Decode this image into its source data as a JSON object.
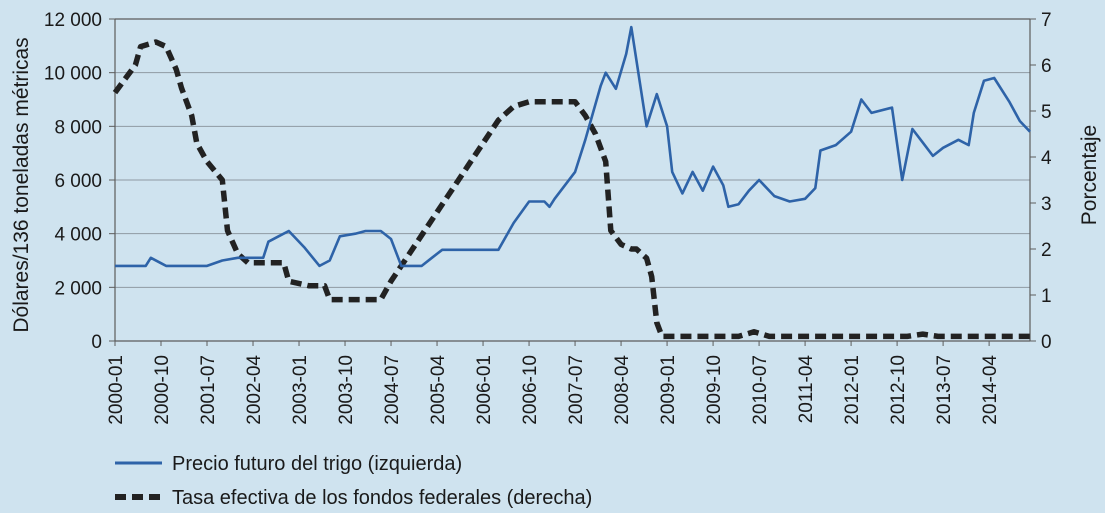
{
  "chart_data": {
    "type": "line",
    "xlabel": "",
    "y_left": {
      "label": "Dólares/136 toneladas métricas",
      "ylim": [
        0,
        12000
      ],
      "ticks": [
        0,
        2000,
        4000,
        6000,
        8000,
        10000,
        12000
      ],
      "tick_labels": [
        "0",
        "2 000",
        "4 000",
        "6 000",
        "8 000",
        "10 000",
        "12 000"
      ]
    },
    "y_right": {
      "label": "Porcentaje",
      "ylim": [
        0,
        7
      ],
      "ticks": [
        0,
        1,
        2,
        3,
        4,
        5,
        6,
        7
      ],
      "tick_labels": [
        "0",
        "1",
        "2",
        "3",
        "4",
        "5",
        "6",
        "7"
      ]
    },
    "x_tick_labels": [
      "2000-01",
      "2000-10",
      "2001-07",
      "2002-04",
      "2003-01",
      "2003-10",
      "2004-07",
      "2005-04",
      "2006-01",
      "2006-10",
      "2007-07",
      "2008-04",
      "2009-01",
      "2009-10",
      "2010-07",
      "2011-04",
      "2012-01",
      "2012-10",
      "2013-07",
      "2014-04"
    ],
    "x_range": [
      "2000-01",
      "2014-12"
    ],
    "grid": "horizontal",
    "legend_position": "bottom",
    "series": [
      {
        "name": "Precio futuro del trigo (izquierda)",
        "axis": "left",
        "color": "#2e63a8",
        "style": "solid",
        "points": [
          [
            "2000-01",
            2800
          ],
          [
            "2000-04",
            2800
          ],
          [
            "2000-07",
            2800
          ],
          [
            "2000-08",
            3100
          ],
          [
            "2000-10",
            2900
          ],
          [
            "2000-11",
            2800
          ],
          [
            "2001-01",
            2800
          ],
          [
            "2001-07",
            2800
          ],
          [
            "2001-10",
            3000
          ],
          [
            "2002-01",
            3100
          ],
          [
            "2002-04",
            3100
          ],
          [
            "2002-06",
            3100
          ],
          [
            "2002-07",
            3700
          ],
          [
            "2002-09",
            3900
          ],
          [
            "2002-11",
            4100
          ],
          [
            "2003-02",
            3500
          ],
          [
            "2003-05",
            2800
          ],
          [
            "2003-07",
            3000
          ],
          [
            "2003-09",
            3900
          ],
          [
            "2003-12",
            4000
          ],
          [
            "2004-02",
            4100
          ],
          [
            "2004-05",
            4100
          ],
          [
            "2004-07",
            3800
          ],
          [
            "2004-09",
            2800
          ],
          [
            "2005-01",
            2800
          ],
          [
            "2005-03",
            3100
          ],
          [
            "2005-05",
            3400
          ],
          [
            "2005-10",
            3400
          ],
          [
            "2006-01",
            3400
          ],
          [
            "2006-04",
            3400
          ],
          [
            "2006-07",
            4400
          ],
          [
            "2006-10",
            5200
          ],
          [
            "2007-01",
            5200
          ],
          [
            "2007-02",
            5000
          ],
          [
            "2007-03",
            5300
          ],
          [
            "2007-07",
            6300
          ],
          [
            "2007-09",
            7500
          ],
          [
            "2007-12",
            9500
          ],
          [
            "2008-01",
            10000
          ],
          [
            "2008-03",
            9400
          ],
          [
            "2008-05",
            10700
          ],
          [
            "2008-06",
            11700
          ],
          [
            "2008-09",
            8000
          ],
          [
            "2008-11",
            9200
          ],
          [
            "2009-01",
            8000
          ],
          [
            "2009-02",
            6300
          ],
          [
            "2009-04",
            5500
          ],
          [
            "2009-06",
            6300
          ],
          [
            "2009-08",
            5600
          ],
          [
            "2009-10",
            6500
          ],
          [
            "2009-12",
            5800
          ],
          [
            "2010-01",
            5000
          ],
          [
            "2010-03",
            5100
          ],
          [
            "2010-05",
            5600
          ],
          [
            "2010-07",
            6000
          ],
          [
            "2010-10",
            5400
          ],
          [
            "2011-01",
            5200
          ],
          [
            "2011-04",
            5300
          ],
          [
            "2011-06",
            5700
          ],
          [
            "2011-07",
            7100
          ],
          [
            "2011-10",
            7300
          ],
          [
            "2012-01",
            7800
          ],
          [
            "2012-03",
            9000
          ],
          [
            "2012-05",
            8500
          ],
          [
            "2012-09",
            8700
          ],
          [
            "2012-11",
            6000
          ],
          [
            "2013-01",
            7900
          ],
          [
            "2013-03",
            7400
          ],
          [
            "2013-05",
            6900
          ],
          [
            "2013-07",
            7200
          ],
          [
            "2013-10",
            7500
          ],
          [
            "2013-12",
            7300
          ],
          [
            "2014-01",
            8500
          ],
          [
            "2014-03",
            9700
          ],
          [
            "2014-05",
            9800
          ],
          [
            "2014-08",
            8900
          ],
          [
            "2014-10",
            8200
          ],
          [
            "2014-12",
            7800
          ]
        ]
      },
      {
        "name": "Tasa efectiva de los fondos federales (derecha)",
        "axis": "right",
        "color": "#222222",
        "style": "dashed",
        "points": [
          [
            "2000-01",
            5.4
          ],
          [
            "2000-03",
            5.7
          ],
          [
            "2000-05",
            6.0
          ],
          [
            "2000-06",
            6.4
          ],
          [
            "2000-09",
            6.5
          ],
          [
            "2000-11",
            6.4
          ],
          [
            "2001-01",
            5.9
          ],
          [
            "2001-02",
            5.5
          ],
          [
            "2001-04",
            4.9
          ],
          [
            "2001-05",
            4.3
          ],
          [
            "2001-07",
            3.9
          ],
          [
            "2001-10",
            3.5
          ],
          [
            "2001-11",
            2.4
          ],
          [
            "2002-01",
            1.9
          ],
          [
            "2002-03",
            1.7
          ],
          [
            "2002-06",
            1.7
          ],
          [
            "2002-10",
            1.7
          ],
          [
            "2002-11",
            1.3
          ],
          [
            "2003-03",
            1.2
          ],
          [
            "2003-06",
            1.2
          ],
          [
            "2003-07",
            0.9
          ],
          [
            "2003-12",
            0.9
          ],
          [
            "2004-05",
            0.9
          ],
          [
            "2004-07",
            1.3
          ],
          [
            "2004-10",
            1.8
          ],
          [
            "2005-01",
            2.3
          ],
          [
            "2005-04",
            2.8
          ],
          [
            "2005-07",
            3.3
          ],
          [
            "2005-10",
            3.8
          ],
          [
            "2006-01",
            4.3
          ],
          [
            "2006-04",
            4.8
          ],
          [
            "2006-07",
            5.1
          ],
          [
            "2006-10",
            5.2
          ],
          [
            "2007-01",
            5.2
          ],
          [
            "2007-04",
            5.2
          ],
          [
            "2007-07",
            5.2
          ],
          [
            "2007-09",
            4.9
          ],
          [
            "2007-11",
            4.5
          ],
          [
            "2007-12",
            4.2
          ],
          [
            "2008-01",
            3.9
          ],
          [
            "2008-02",
            2.4
          ],
          [
            "2008-04",
            2.1
          ],
          [
            "2008-06",
            2.0
          ],
          [
            "2008-07",
            2.0
          ],
          [
            "2008-09",
            1.8
          ],
          [
            "2008-10",
            1.4
          ],
          [
            "2008-11",
            0.4
          ],
          [
            "2008-12",
            0.1
          ],
          [
            "2009-03",
            0.1
          ],
          [
            "2009-06",
            0.1
          ],
          [
            "2009-09",
            0.1
          ],
          [
            "2009-12",
            0.1
          ],
          [
            "2010-03",
            0.1
          ],
          [
            "2010-06",
            0.2
          ],
          [
            "2010-09",
            0.1
          ],
          [
            "2011-01",
            0.1
          ],
          [
            "2011-06",
            0.1
          ],
          [
            "2011-12",
            0.1
          ],
          [
            "2012-03",
            0.1
          ],
          [
            "2012-06",
            0.1
          ],
          [
            "2012-09",
            0.1
          ],
          [
            "2012-12",
            0.1
          ],
          [
            "2013-03",
            0.15
          ],
          [
            "2013-06",
            0.1
          ],
          [
            "2013-09",
            0.1
          ],
          [
            "2013-12",
            0.1
          ],
          [
            "2014-03",
            0.1
          ],
          [
            "2014-06",
            0.1
          ],
          [
            "2014-09",
            0.1
          ],
          [
            "2014-12",
            0.1
          ]
        ]
      }
    ]
  }
}
